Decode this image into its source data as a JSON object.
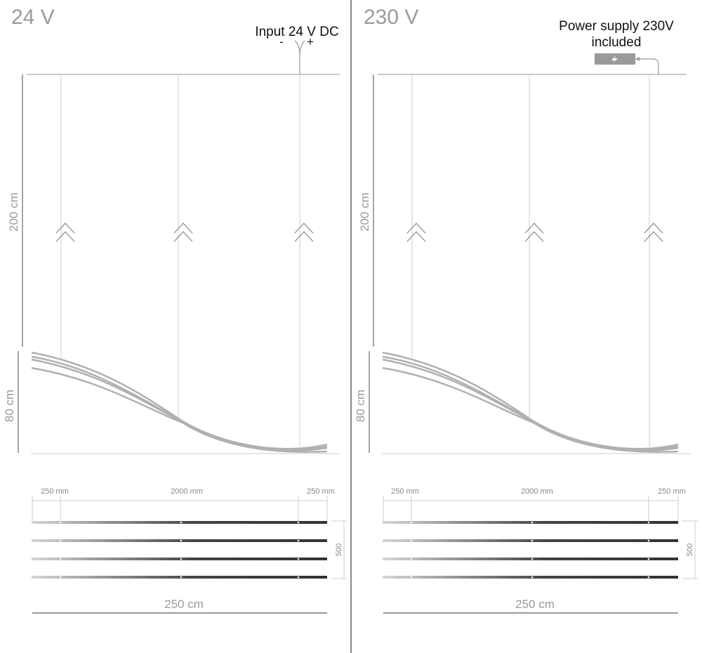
{
  "panels": [
    {
      "id": "left",
      "title": "24 V",
      "power_note": "Input 24 V DC",
      "minus": "-",
      "plus": "+",
      "height_label": "200 cm",
      "drop_label": "80 cm",
      "seg_left": "250 mm",
      "seg_mid": "2000 mm",
      "seg_right": "250 mm",
      "spacing": "500",
      "length_label": "250 cm"
    },
    {
      "id": "right",
      "title": "230 V",
      "power_note_line1": "Power supply 230V",
      "power_note_line2": "included",
      "height_label": "200 cm",
      "drop_label": "80 cm",
      "seg_left": "250 mm",
      "seg_mid": "2000 mm",
      "seg_right": "250 mm",
      "spacing": "500",
      "length_label": "250 cm"
    }
  ],
  "colors": {
    "line": "#b8b8b8",
    "text": "#9a9a9a",
    "divider": "#888888",
    "bar_light": "#d0d0d0",
    "bar_dark": "#3a3a3a"
  }
}
